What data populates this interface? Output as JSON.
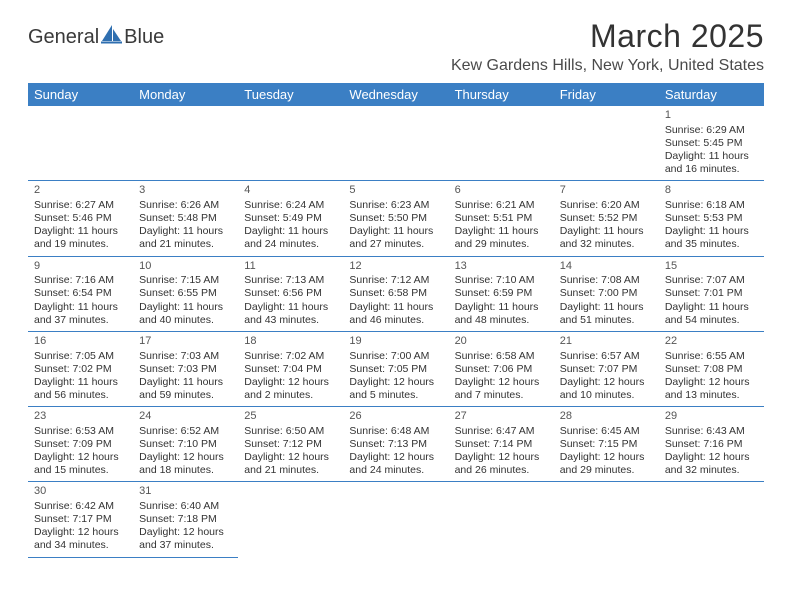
{
  "brand": {
    "part1": "General",
    "part2": "Blue"
  },
  "title": "March 2025",
  "location": "Kew Gardens Hills, New York, United States",
  "colors": {
    "header_bg": "#3b7fc4",
    "header_text": "#ffffff",
    "rule": "#3b7fc4",
    "body_text": "#333333",
    "brand_blue": "#2f6fb0"
  },
  "weekdays": [
    "Sunday",
    "Monday",
    "Tuesday",
    "Wednesday",
    "Thursday",
    "Friday",
    "Saturday"
  ],
  "weeks": [
    [
      null,
      null,
      null,
      null,
      null,
      null,
      {
        "d": "1",
        "sr": "Sunrise: 6:29 AM",
        "ss": "Sunset: 5:45 PM",
        "dl": "Daylight: 11 hours and 16 minutes."
      }
    ],
    [
      {
        "d": "2",
        "sr": "Sunrise: 6:27 AM",
        "ss": "Sunset: 5:46 PM",
        "dl": "Daylight: 11 hours and 19 minutes."
      },
      {
        "d": "3",
        "sr": "Sunrise: 6:26 AM",
        "ss": "Sunset: 5:48 PM",
        "dl": "Daylight: 11 hours and 21 minutes."
      },
      {
        "d": "4",
        "sr": "Sunrise: 6:24 AM",
        "ss": "Sunset: 5:49 PM",
        "dl": "Daylight: 11 hours and 24 minutes."
      },
      {
        "d": "5",
        "sr": "Sunrise: 6:23 AM",
        "ss": "Sunset: 5:50 PM",
        "dl": "Daylight: 11 hours and 27 minutes."
      },
      {
        "d": "6",
        "sr": "Sunrise: 6:21 AM",
        "ss": "Sunset: 5:51 PM",
        "dl": "Daylight: 11 hours and 29 minutes."
      },
      {
        "d": "7",
        "sr": "Sunrise: 6:20 AM",
        "ss": "Sunset: 5:52 PM",
        "dl": "Daylight: 11 hours and 32 minutes."
      },
      {
        "d": "8",
        "sr": "Sunrise: 6:18 AM",
        "ss": "Sunset: 5:53 PM",
        "dl": "Daylight: 11 hours and 35 minutes."
      }
    ],
    [
      {
        "d": "9",
        "sr": "Sunrise: 7:16 AM",
        "ss": "Sunset: 6:54 PM",
        "dl": "Daylight: 11 hours and 37 minutes."
      },
      {
        "d": "10",
        "sr": "Sunrise: 7:15 AM",
        "ss": "Sunset: 6:55 PM",
        "dl": "Daylight: 11 hours and 40 minutes."
      },
      {
        "d": "11",
        "sr": "Sunrise: 7:13 AM",
        "ss": "Sunset: 6:56 PM",
        "dl": "Daylight: 11 hours and 43 minutes."
      },
      {
        "d": "12",
        "sr": "Sunrise: 7:12 AM",
        "ss": "Sunset: 6:58 PM",
        "dl": "Daylight: 11 hours and 46 minutes."
      },
      {
        "d": "13",
        "sr": "Sunrise: 7:10 AM",
        "ss": "Sunset: 6:59 PM",
        "dl": "Daylight: 11 hours and 48 minutes."
      },
      {
        "d": "14",
        "sr": "Sunrise: 7:08 AM",
        "ss": "Sunset: 7:00 PM",
        "dl": "Daylight: 11 hours and 51 minutes."
      },
      {
        "d": "15",
        "sr": "Sunrise: 7:07 AM",
        "ss": "Sunset: 7:01 PM",
        "dl": "Daylight: 11 hours and 54 minutes."
      }
    ],
    [
      {
        "d": "16",
        "sr": "Sunrise: 7:05 AM",
        "ss": "Sunset: 7:02 PM",
        "dl": "Daylight: 11 hours and 56 minutes."
      },
      {
        "d": "17",
        "sr": "Sunrise: 7:03 AM",
        "ss": "Sunset: 7:03 PM",
        "dl": "Daylight: 11 hours and 59 minutes."
      },
      {
        "d": "18",
        "sr": "Sunrise: 7:02 AM",
        "ss": "Sunset: 7:04 PM",
        "dl": "Daylight: 12 hours and 2 minutes."
      },
      {
        "d": "19",
        "sr": "Sunrise: 7:00 AM",
        "ss": "Sunset: 7:05 PM",
        "dl": "Daylight: 12 hours and 5 minutes."
      },
      {
        "d": "20",
        "sr": "Sunrise: 6:58 AM",
        "ss": "Sunset: 7:06 PM",
        "dl": "Daylight: 12 hours and 7 minutes."
      },
      {
        "d": "21",
        "sr": "Sunrise: 6:57 AM",
        "ss": "Sunset: 7:07 PM",
        "dl": "Daylight: 12 hours and 10 minutes."
      },
      {
        "d": "22",
        "sr": "Sunrise: 6:55 AM",
        "ss": "Sunset: 7:08 PM",
        "dl": "Daylight: 12 hours and 13 minutes."
      }
    ],
    [
      {
        "d": "23",
        "sr": "Sunrise: 6:53 AM",
        "ss": "Sunset: 7:09 PM",
        "dl": "Daylight: 12 hours and 15 minutes."
      },
      {
        "d": "24",
        "sr": "Sunrise: 6:52 AM",
        "ss": "Sunset: 7:10 PM",
        "dl": "Daylight: 12 hours and 18 minutes."
      },
      {
        "d": "25",
        "sr": "Sunrise: 6:50 AM",
        "ss": "Sunset: 7:12 PM",
        "dl": "Daylight: 12 hours and 21 minutes."
      },
      {
        "d": "26",
        "sr": "Sunrise: 6:48 AM",
        "ss": "Sunset: 7:13 PM",
        "dl": "Daylight: 12 hours and 24 minutes."
      },
      {
        "d": "27",
        "sr": "Sunrise: 6:47 AM",
        "ss": "Sunset: 7:14 PM",
        "dl": "Daylight: 12 hours and 26 minutes."
      },
      {
        "d": "28",
        "sr": "Sunrise: 6:45 AM",
        "ss": "Sunset: 7:15 PM",
        "dl": "Daylight: 12 hours and 29 minutes."
      },
      {
        "d": "29",
        "sr": "Sunrise: 6:43 AM",
        "ss": "Sunset: 7:16 PM",
        "dl": "Daylight: 12 hours and 32 minutes."
      }
    ],
    [
      {
        "d": "30",
        "sr": "Sunrise: 6:42 AM",
        "ss": "Sunset: 7:17 PM",
        "dl": "Daylight: 12 hours and 34 minutes."
      },
      {
        "d": "31",
        "sr": "Sunrise: 6:40 AM",
        "ss": "Sunset: 7:18 PM",
        "dl": "Daylight: 12 hours and 37 minutes."
      },
      null,
      null,
      null,
      null,
      null
    ]
  ]
}
